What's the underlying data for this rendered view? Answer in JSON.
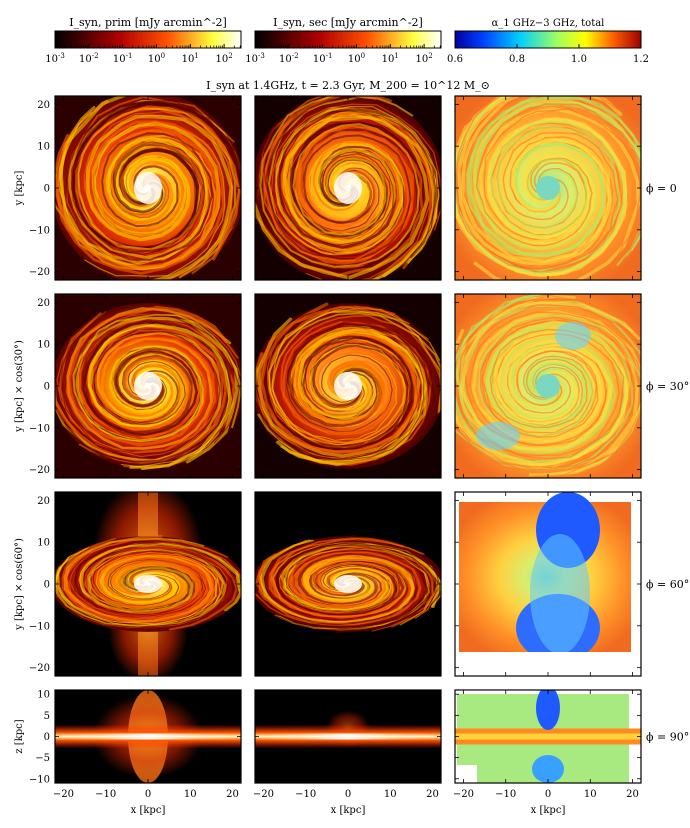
{
  "figure": {
    "title": "I_syn at 1.4GHz, t = 2.3 Gyr, M_200 = 10^12 M_⊙",
    "colorbars": [
      {
        "label": "I_syn, prim [mJy arcmin^-2]",
        "ticks": [
          "10^-3",
          "10^-2",
          "10^-1",
          "10^0",
          "10^1",
          "10^2"
        ],
        "scale": "log",
        "colormap": "hot"
      },
      {
        "label": "I_syn, sec [mJy arcmin^-2]",
        "ticks": [
          "10^-3",
          "10^-2",
          "10^-1",
          "10^0",
          "10^1",
          "10^2"
        ],
        "scale": "log",
        "colormap": "hot"
      },
      {
        "label": "α_1 GHz−3 GHz, total",
        "ticks": [
          "0.6",
          "0.8",
          "1.0",
          "1.2"
        ],
        "range": [
          0.6,
          1.2
        ],
        "colormap": "jet"
      }
    ],
    "rows": [
      {
        "phi_label": "ϕ = 0",
        "ylabel": "y [kpc]",
        "yticks": [
          "20",
          "10",
          "0",
          "−10",
          "−20"
        ],
        "view": "face"
      },
      {
        "phi_label": "ϕ = 30°",
        "ylabel": "y [kpc] × cos(30°)",
        "yticks": [
          "20",
          "10",
          "0",
          "−10",
          "−20"
        ],
        "view": "tilt30"
      },
      {
        "phi_label": "ϕ = 60°",
        "ylabel": "y [kpc] × cos(60°)",
        "yticks": [
          "20",
          "10",
          "0",
          "−10",
          "−20"
        ],
        "view": "tilt60"
      },
      {
        "phi_label": "ϕ = 90°",
        "ylabel": "z [kpc]",
        "yticks": [
          "10",
          "5",
          "0",
          "−5",
          "−10"
        ],
        "view": "edge"
      }
    ],
    "xlabel": "x [kpc]",
    "xticks": [
      "−20",
      "−10",
      "0",
      "10",
      "20"
    ],
    "colors": {
      "spiral_dark": "#1a0000",
      "spiral_mid": "#cc1a00",
      "spiral_bright": "#ffff66",
      "spectral_green": "#b8e860",
      "spectral_orange": "#ff9a2a",
      "spectral_blue": "#1e5aff"
    }
  }
}
